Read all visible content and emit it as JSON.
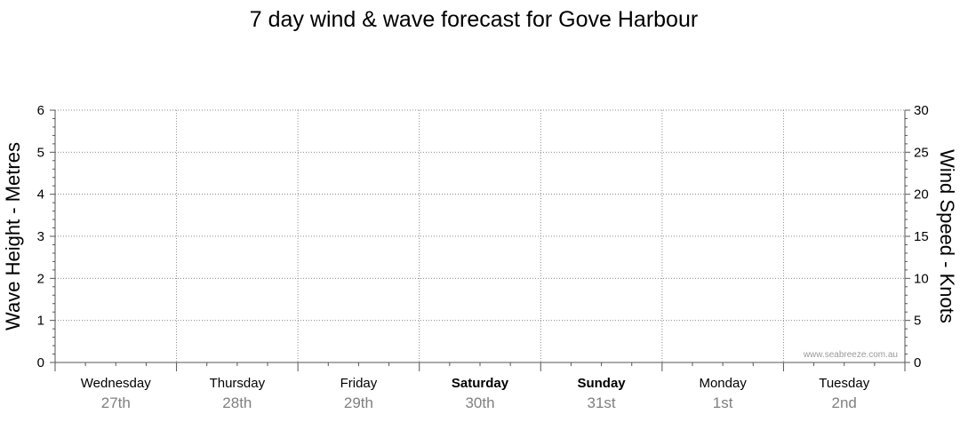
{
  "chart_data": {
    "type": "line",
    "title": "7 day wind & wave forecast for Gove Harbour",
    "ylabel_left": "Wave Height - Metres",
    "ylabel_right": "Wind Speed - Knots",
    "ylim_left": [
      0,
      6
    ],
    "ylim_right": [
      0,
      30
    ],
    "yticks_left": [
      0,
      1,
      2,
      3,
      4,
      5,
      6
    ],
    "yticks_right": [
      0,
      5,
      10,
      15,
      20,
      25,
      30
    ],
    "days": [
      {
        "name": "Wednesday",
        "date": "27th",
        "weekend": false
      },
      {
        "name": "Thursday",
        "date": "28th",
        "weekend": false
      },
      {
        "name": "Friday",
        "date": "29th",
        "weekend": false
      },
      {
        "name": "Saturday",
        "date": "30th",
        "weekend": true
      },
      {
        "name": "Sunday",
        "date": "31st",
        "weekend": true
      },
      {
        "name": "Monday",
        "date": "1st",
        "weekend": false
      },
      {
        "name": "Tuesday",
        "date": "2nd",
        "weekend": false
      }
    ],
    "series": [],
    "grid": true,
    "watermark": "www.seabreeze.com.au"
  },
  "colors": {
    "axis": "#555555",
    "grid": "#8c8c8c",
    "text": "#000000",
    "date": "#808080",
    "watermark": "#9a9a9a"
  }
}
